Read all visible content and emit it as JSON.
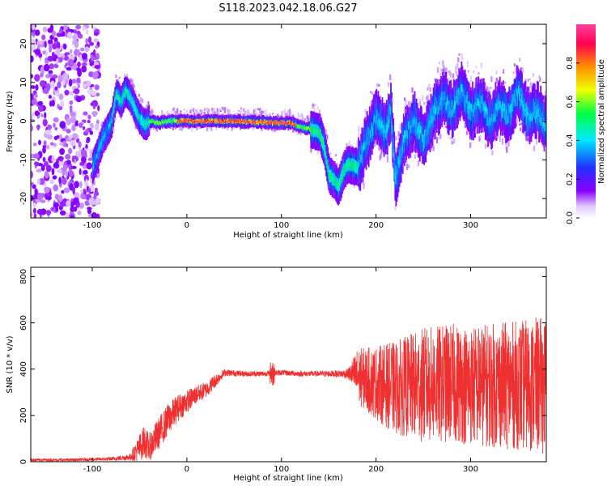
{
  "title": "S118.2023.042.18.06.G27",
  "chart_data": [
    {
      "type": "heatmap",
      "xlabel": "Height of straight line (km)",
      "ylabel": "Frequency (Hz)",
      "xlim": [
        -165,
        380
      ],
      "ylim": [
        -25,
        25
      ],
      "xticks": [
        -100,
        0,
        100,
        200,
        300
      ],
      "yticks": [
        -20,
        -10,
        0,
        10,
        20
      ],
      "grid": false,
      "colorbar": {
        "label": "Normalized spectral amplitude",
        "range": [
          0.0,
          1.0
        ],
        "ticks": [
          0.0,
          0.2,
          0.4,
          0.6,
          0.8
        ],
        "tick_labels": [
          "0.0",
          "0.2",
          "0.4",
          "0.6",
          "0.8"
        ],
        "colormap": [
          "#ffffff",
          "#8a00ff",
          "#2030ff",
          "#00e8ff",
          "#00ff40",
          "#f0ff00",
          "#ff9000",
          "#ff0050",
          "#ff40a0"
        ]
      },
      "signal_track": {
        "height_km": [
          -100,
          -90,
          -80,
          -75,
          -70,
          -65,
          -60,
          -55,
          -50,
          -45,
          -40,
          -30,
          -20,
          0,
          50,
          100,
          110,
          120,
          130,
          140,
          145,
          150,
          155,
          160,
          165,
          170,
          180,
          190,
          195,
          200,
          210,
          215,
          220,
          230,
          240,
          250,
          260,
          270,
          280,
          290,
          300,
          310,
          320,
          330,
          340,
          350,
          360,
          370,
          380
        ],
        "frequency_hz": [
          -12,
          -5,
          0,
          7,
          5,
          8,
          6,
          3,
          0.5,
          -1,
          0,
          -0.5,
          0,
          0,
          0,
          -0.5,
          -0.5,
          -1.5,
          -2,
          -3,
          -7,
          -14,
          -15,
          -17,
          -13,
          -11,
          -12,
          -5,
          -2,
          1,
          -3,
          3,
          -15,
          -4,
          0,
          -5,
          2,
          6,
          3,
          8,
          2,
          5,
          0,
          4,
          1,
          8,
          1,
          3,
          -2
        ]
      }
    },
    {
      "type": "line",
      "xlabel": "Height of straight line (km)",
      "ylabel": "SNR (10 * v/v)",
      "xlim": [
        -165,
        380
      ],
      "ylim": [
        0,
        840
      ],
      "xticks": [
        -100,
        0,
        100,
        200,
        300
      ],
      "yticks": [
        0,
        200,
        400,
        600,
        800
      ],
      "grid": false,
      "series": [
        {
          "color": "#ee3030",
          "x": [
            -165,
            -120,
            -80,
            -60,
            -50,
            -45,
            -40,
            -30,
            -20,
            -10,
            0,
            10,
            20,
            30,
            40,
            60,
            80,
            100,
            120,
            140,
            160,
            170,
            175,
            180,
            200,
            220,
            250,
            280,
            300,
            320,
            350,
            380
          ],
          "mean": [
            8,
            8,
            12,
            20,
            60,
            90,
            60,
            120,
            180,
            230,
            260,
            290,
            310,
            350,
            385,
            380,
            380,
            385,
            380,
            380,
            380,
            380,
            380,
            370,
            340,
            320,
            330,
            340,
            330,
            330,
            330,
            330
          ],
          "spread": [
            6,
            6,
            8,
            15,
            60,
            70,
            60,
            70,
            70,
            60,
            50,
            40,
            35,
            30,
            15,
            12,
            12,
            12,
            12,
            12,
            15,
            20,
            60,
            120,
            160,
            200,
            250,
            260,
            260,
            270,
            280,
            300
          ]
        }
      ]
    }
  ]
}
